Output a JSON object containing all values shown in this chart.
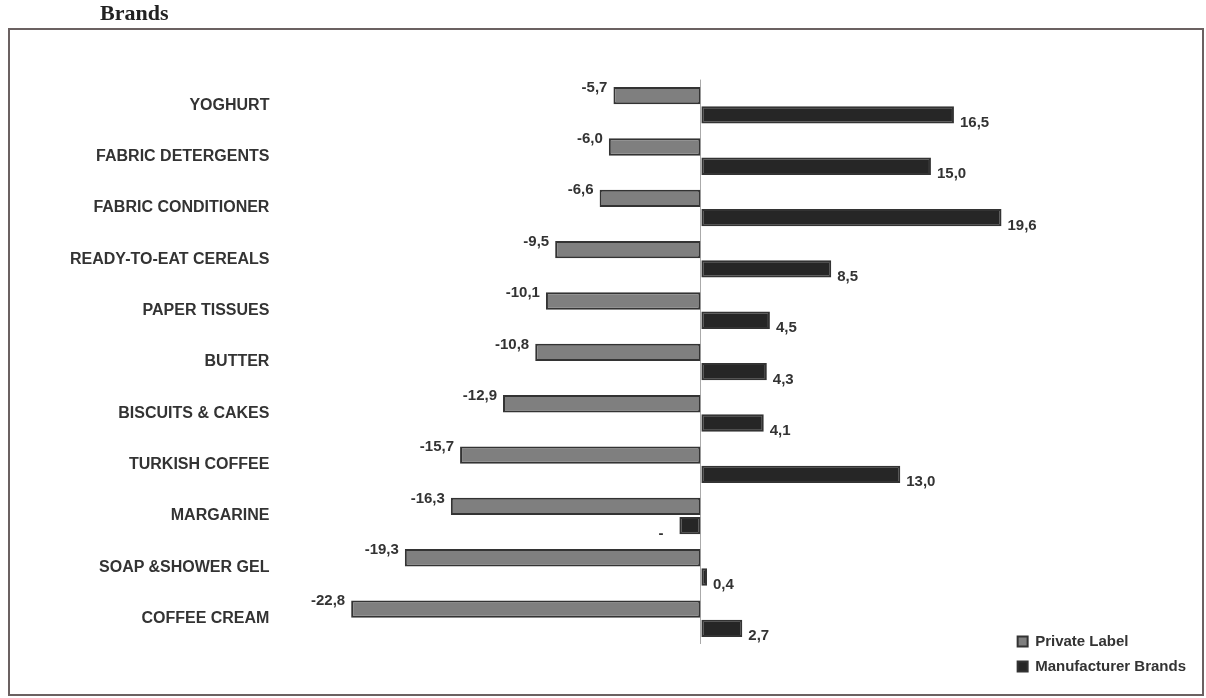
{
  "chart_data": {
    "type": "bar",
    "orientation": "horizontal",
    "title": "Brands",
    "categories": [
      "YOGHURT",
      "FABRIC DETERGENTS",
      "FABRIC CONDITIONER",
      "READY-TO-EAT CEREALS",
      "PAPER TISSUES",
      "BUTTER",
      "BISCUITS & CAKES",
      "TURKISH COFFEE",
      "MARGARINE",
      "SOAP &SHOWER GEL",
      "COFFEE CREAM"
    ],
    "series": [
      {
        "name": "Private Label",
        "color": "#7f7f7f",
        "values": [
          -5.7,
          -6.0,
          -6.6,
          -9.5,
          -10.1,
          -10.8,
          -12.9,
          -15.7,
          -16.3,
          -19.3,
          -22.8
        ],
        "value_labels": [
          "-5,7",
          "-6,0",
          "-6,6",
          "-9,5",
          "-10,1",
          "-10,8",
          "-12,9",
          "-15,7",
          "-16,3",
          "-19,3",
          "-22,8"
        ]
      },
      {
        "name": "Manufacturer Brands",
        "color": "#262626",
        "values": [
          16.5,
          15.0,
          19.6,
          8.5,
          4.5,
          4.3,
          4.1,
          13.0,
          -1.4,
          0.4,
          2.7
        ],
        "value_labels": [
          "16,5",
          "15,0",
          "19,6",
          "8,5",
          "4,5",
          "4,3",
          "4,1",
          "13,0",
          "-",
          "0,4",
          "2,7"
        ]
      }
    ],
    "legend": "bottom right",
    "grid": false
  }
}
